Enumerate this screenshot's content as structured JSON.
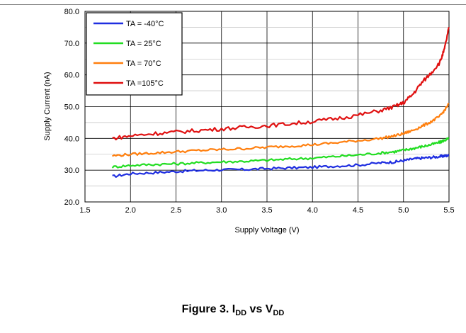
{
  "figure": {
    "caption_prefix": "Figure 3. I",
    "caption_sub1": "DD",
    "caption_mid": " vs V",
    "caption_sub2": "DD"
  },
  "chart_data": {
    "type": "line",
    "xlabel": "Supply Voltage (V)",
    "ylabel": "Supply Current (nA)",
    "xlim": [
      1.5,
      5.5
    ],
    "ylim": [
      20.0,
      80.0
    ],
    "x_ticks": [
      1.5,
      2.0,
      2.5,
      3.0,
      3.5,
      4.0,
      4.5,
      5.0,
      5.5
    ],
    "x_tick_labels": [
      "1.5",
      "2.0",
      "2.5",
      "3.0",
      "3.5",
      "4.0",
      "4.5",
      "5.0",
      "5.5"
    ],
    "y_ticks": [
      20.0,
      30.0,
      40.0,
      50.0,
      60.0,
      70.0,
      80.0
    ],
    "y_tick_labels": [
      "20.0",
      "30.0",
      "40.0",
      "50.0",
      "60.0",
      "70.0",
      "80.0"
    ],
    "grid": true,
    "legend_position": "top-left",
    "x": [
      1.8,
      2.0,
      2.25,
      2.5,
      2.75,
      3.0,
      3.25,
      3.5,
      3.75,
      4.0,
      4.25,
      4.5,
      4.75,
      4.9,
      5.0,
      5.1,
      5.2,
      5.3,
      5.4,
      5.45,
      5.5
    ],
    "series": [
      {
        "name": "TA = -40°C",
        "color": "#1f2ee0",
        "values": [
          28.0,
          28.9,
          29.2,
          29.6,
          29.9,
          30.1,
          30.2,
          30.5,
          30.7,
          30.9,
          31.3,
          31.6,
          32.3,
          32.6,
          33.0,
          33.5,
          33.8,
          34.0,
          34.3,
          34.5,
          34.6
        ]
      },
      {
        "name": "TA = 25°C",
        "color": "#22dd22",
        "values": [
          31.0,
          31.5,
          31.8,
          32.0,
          32.3,
          32.6,
          32.8,
          33.1,
          33.5,
          33.8,
          34.3,
          34.8,
          35.4,
          35.8,
          36.3,
          36.8,
          37.4,
          38.0,
          38.8,
          39.4,
          40.0
        ]
      },
      {
        "name": "TA = 70°C",
        "color": "#ff7f0e",
        "values": [
          34.5,
          35.0,
          35.4,
          35.8,
          36.2,
          36.5,
          36.8,
          37.2,
          37.6,
          38.0,
          38.6,
          39.3,
          40.0,
          40.8,
          41.5,
          42.5,
          43.8,
          45.2,
          47.0,
          48.8,
          51.0
        ]
      },
      {
        "name": "TA =105°C",
        "color": "#e01010",
        "values": [
          40.0,
          40.8,
          41.5,
          42.0,
          42.5,
          43.0,
          43.5,
          44.0,
          44.6,
          45.3,
          46.2,
          47.3,
          48.8,
          50.0,
          51.2,
          53.8,
          57.5,
          60.5,
          64.0,
          68.0,
          75.0
        ]
      }
    ]
  }
}
